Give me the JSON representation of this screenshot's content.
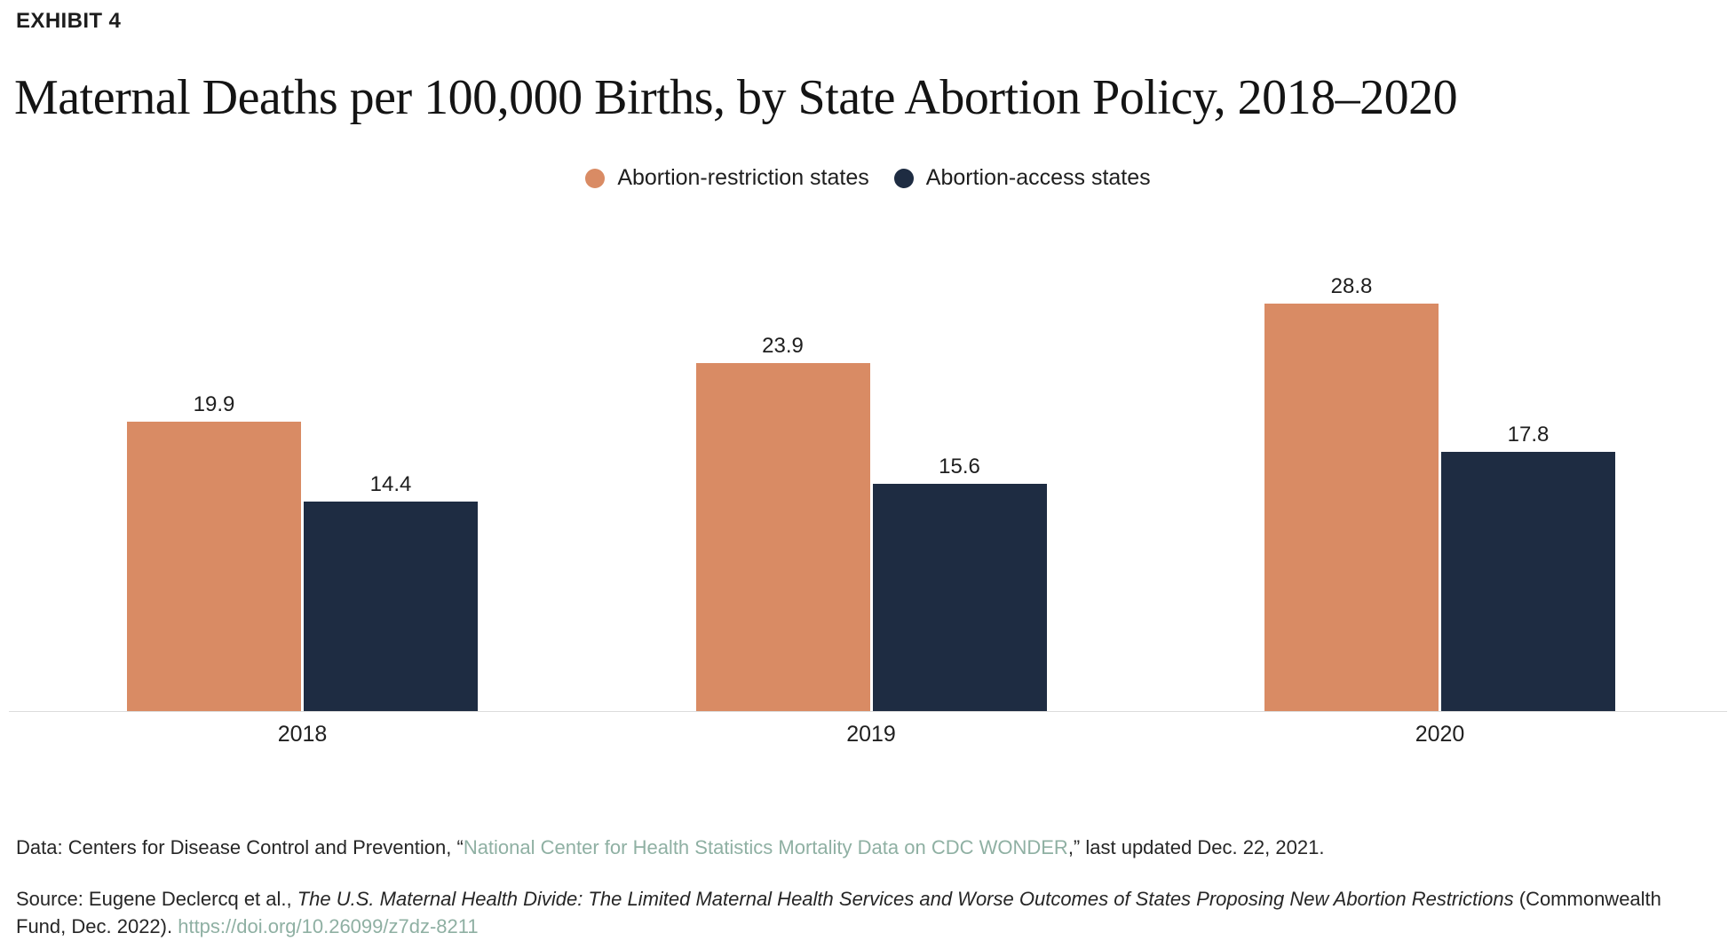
{
  "exhibit_label": "EXHIBIT 4",
  "title": "Maternal Deaths per 100,000 Births, by State Abortion Policy, 2018–2020",
  "colors": {
    "restriction": "#D98B64",
    "access": "#1E2C42",
    "link": "#8FB0A3",
    "text": "#1E1E1E",
    "axis_line": "#DCDCDC"
  },
  "chart_data": {
    "type": "bar",
    "title": "Maternal Deaths per 100,000 Births, by State Abortion Policy, 2018–2020",
    "categories": [
      "2018",
      "2019",
      "2020"
    ],
    "series": [
      {
        "key": "restriction",
        "name": "Abortion-restriction states",
        "color": "#D98B64",
        "values": [
          19.9,
          23.9,
          28.8
        ]
      },
      {
        "key": "access",
        "name": "Abortion-access states",
        "color": "#1E2C42",
        "values": [
          14.4,
          15.6,
          17.8
        ]
      }
    ],
    "xlabel": "",
    "ylabel": "",
    "ylim": [
      0,
      30
    ],
    "grid": false,
    "value_labels": true,
    "legend_position": "top-center"
  },
  "footer": {
    "lines": [
      {
        "name": "data-note",
        "segments": [
          {
            "text": "Data: Centers for Disease Control and Prevention, “",
            "style": "text"
          },
          {
            "text": "National Center for Health Statistics Mortality Data on CDC WONDER",
            "style": "link",
            "name": "cdc-wonder-link"
          },
          {
            "text": ",” last updated Dec. 22, 2021.",
            "style": "text"
          }
        ]
      },
      {
        "name": "source-note",
        "segments": [
          {
            "text": "Source: Eugene Declercq et al., ",
            "style": "text"
          },
          {
            "text": "The U.S. Maternal Health Divide: The Limited Maternal Health Services and Worse Outcomes of States Proposing New Abortion Restrictions",
            "style": "italic"
          },
          {
            "text": " (Commonwealth Fund, Dec. 2022). ",
            "style": "text"
          },
          {
            "text": "https://doi.org/10.26099/z7dz-8211",
            "style": "link",
            "name": "doi-link"
          }
        ]
      }
    ]
  }
}
